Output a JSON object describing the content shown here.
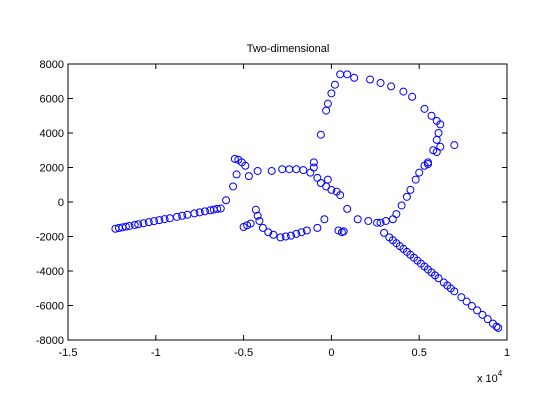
{
  "chart_data": {
    "type": "scatter",
    "title": "Two-dimensional",
    "x": [
      -1.23,
      -1.21,
      -1.19,
      -1.17,
      -1.15,
      -1.12,
      -1.1,
      -1.07,
      -1.04,
      -1.01,
      -0.98,
      -0.95,
      -0.92,
      -0.88,
      -0.85,
      -0.82,
      -0.78,
      -0.75,
      -0.72,
      -0.69,
      -0.67,
      -0.65,
      -0.63,
      -0.6,
      -0.56,
      -0.54,
      -0.55,
      -0.53,
      -0.51,
      -0.49,
      -0.47,
      -0.42,
      -0.34,
      -0.5,
      -0.48,
      -0.46,
      -0.43,
      -0.42,
      -0.41,
      -0.39,
      -0.36,
      -0.33,
      -0.29,
      -0.26,
      -0.23,
      -0.2,
      -0.17,
      -0.14,
      -0.08,
      -0.04,
      0.04,
      0.06,
      0.07,
      -0.28,
      -0.24,
      -0.2,
      -0.16,
      -0.12,
      -0.1,
      -0.1,
      -0.08,
      -0.06,
      -0.03,
      0.0,
      0.03,
      0.05,
      -0.02,
      -0.06,
      -0.03,
      -0.02,
      0.0,
      0.02,
      0.05,
      0.09,
      0.13,
      0.22,
      0.28,
      0.34,
      0.41,
      0.46,
      0.53,
      0.57,
      0.6,
      0.62,
      0.61,
      0.6,
      0.62,
      0.58,
      0.6,
      0.7,
      0.55,
      0.53,
      0.5,
      0.48,
      0.45,
      0.43,
      0.4,
      0.37,
      0.35,
      0.31,
      0.28,
      0.26,
      0.21,
      0.15,
      0.09,
      0.55,
      0.3,
      0.33,
      0.35,
      0.37,
      0.39,
      0.41,
      0.43,
      0.45,
      0.47,
      0.49,
      0.51,
      0.53,
      0.55,
      0.57,
      0.59,
      0.61,
      0.64,
      0.66,
      0.68,
      0.7,
      0.74,
      0.77,
      0.8,
      0.83,
      0.86,
      0.89,
      0.92,
      0.94,
      0.95
    ],
    "values": [
      -1550,
      -1510,
      -1470,
      -1430,
      -1390,
      -1330,
      -1290,
      -1230,
      -1170,
      -1110,
      -1050,
      -990,
      -940,
      -860,
      -800,
      -740,
      -660,
      -600,
      -540,
      -480,
      -440,
      -400,
      -380,
      100,
      900,
      1600,
      2500,
      2450,
      2300,
      2100,
      1500,
      1800,
      1800,
      -1450,
      -1350,
      -1250,
      -450,
      -800,
      -1100,
      -1500,
      -1750,
      -1900,
      -2050,
      -2000,
      -1950,
      -1850,
      -1750,
      -1650,
      -1500,
      -1000,
      -1650,
      -1750,
      -1700,
      1900,
      1900,
      1900,
      1850,
      1700,
      2300,
      2000,
      1400,
      1100,
      900,
      700,
      600,
      400,
      1300,
      3900,
      5300,
      5700,
      6300,
      6800,
      7400,
      7400,
      7200,
      7100,
      6900,
      6700,
      6400,
      6100,
      5400,
      5000,
      4700,
      4500,
      4000,
      3600,
      3200,
      3000,
      2900,
      3300,
      2300,
      2100,
      1700,
      1300,
      700,
      300,
      -200,
      -700,
      -1000,
      -1100,
      -1200,
      -1200,
      -1100,
      -1000,
      -400,
      2200,
      -1790,
      -2050,
      -2220,
      -2390,
      -2560,
      -2720,
      -2890,
      -3060,
      -3230,
      -3400,
      -3570,
      -3740,
      -3910,
      -4080,
      -4250,
      -4420,
      -4670,
      -4840,
      -5010,
      -5180,
      -5520,
      -5770,
      -6030,
      -6280,
      -6540,
      -6790,
      -7050,
      -7220,
      -7300
    ],
    "color": "#0000ff",
    "xlim": [
      -1.5,
      1
    ],
    "xticks": [
      -1.5,
      -1,
      -0.5,
      0,
      0.5,
      1
    ],
    "ylim": [
      -8000,
      8000
    ],
    "yticks": [
      -8000,
      -6000,
      -4000,
      -2000,
      0,
      2000,
      4000,
      6000,
      8000
    ],
    "x_multiplier": {
      "base": "x 10",
      "exponent": "4"
    }
  }
}
